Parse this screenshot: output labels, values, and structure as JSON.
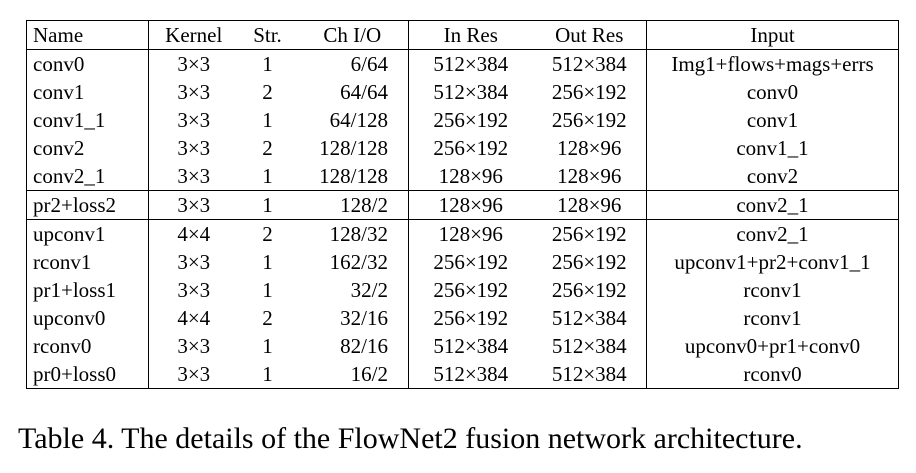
{
  "table": {
    "headers": [
      "Name",
      "Kernel",
      "Str.",
      "Ch I/O",
      "In Res",
      "Out Res",
      "Input"
    ],
    "rows": [
      [
        "conv0",
        "3×3",
        "1",
        "6/64",
        "512×384",
        "512×384",
        "Img1+flows+mags+errs"
      ],
      [
        "conv1",
        "3×3",
        "2",
        "64/64",
        "512×384",
        "256×192",
        "conv0"
      ],
      [
        "conv1_1",
        "3×3",
        "1",
        "64/128",
        "256×192",
        "256×192",
        "conv1"
      ],
      [
        "conv2",
        "3×3",
        "2",
        "128/128",
        "256×192",
        "128×96",
        "conv1_1"
      ],
      [
        "conv2_1",
        "3×3",
        "1",
        "128/128",
        "128×96",
        "128×96",
        "conv2"
      ],
      [
        "pr2+loss2",
        "3×3",
        "1",
        "128/2",
        "128×96",
        "128×96",
        "conv2_1"
      ],
      [
        "upconv1",
        "4×4",
        "2",
        "128/32",
        "128×96",
        "256×192",
        "conv2_1"
      ],
      [
        "rconv1",
        "3×3",
        "1",
        "162/32",
        "256×192",
        "256×192",
        "upconv1+pr2+conv1_1"
      ],
      [
        "pr1+loss1",
        "3×3",
        "1",
        "32/2",
        "256×192",
        "256×192",
        "rconv1"
      ],
      [
        "upconv0",
        "4×4",
        "2",
        "32/16",
        "256×192",
        "512×384",
        "rconv1"
      ],
      [
        "rconv0",
        "3×3",
        "1",
        "82/16",
        "512×384",
        "512×384",
        "upconv0+pr1+conv0"
      ],
      [
        "pr0+loss0",
        "3×3",
        "1",
        "16/2",
        "512×384",
        "512×384",
        "rconv0"
      ]
    ]
  },
  "caption": "Table 4. The details of the FlowNet2 fusion network architecture."
}
